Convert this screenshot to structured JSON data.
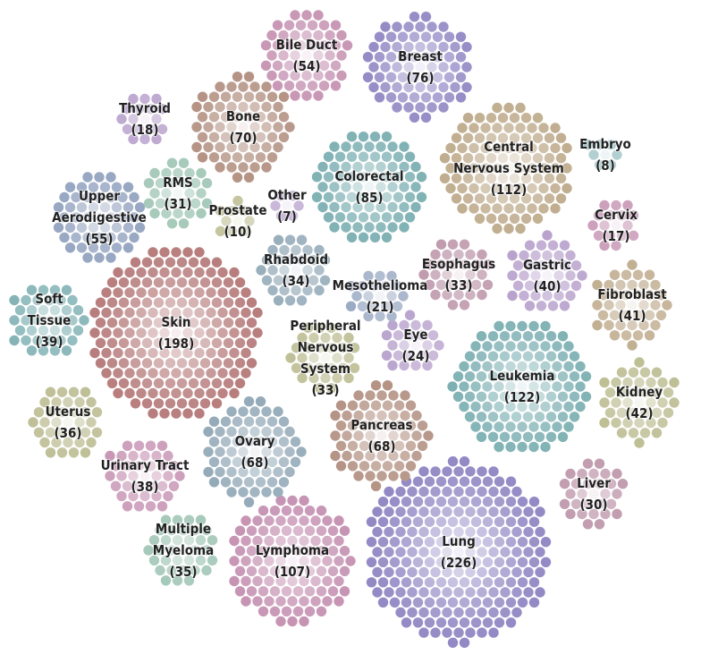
{
  "chart_data": {
    "type": "clustered-dot",
    "palette": {
      "rose": "#c48fb0",
      "purple": "#8f85c2",
      "brown": "#b08d7e",
      "tan": "#bda98a",
      "teal": "#79adb0",
      "blue": "#8fa0bd",
      "red": "#b67a7a",
      "olive": "#b8b98c",
      "lilac": "#b39bc9",
      "mauve": "#ba92a6",
      "sage": "#9cc3b3",
      "slate": "#8fa6b5"
    },
    "groups": [
      {
        "name": "Skin",
        "lines": [
          "Skin",
          "(198)"
        ],
        "count": 198,
        "color": "red"
      },
      {
        "name": "Lung",
        "lines": [
          "Lung",
          "(226)"
        ],
        "count": 226,
        "color": "purple"
      },
      {
        "name": "Leukemia",
        "lines": [
          "Leukemia",
          "(122)"
        ],
        "count": 122,
        "color": "teal"
      },
      {
        "name": "Central Nervous System",
        "lines": [
          "Central",
          "Nervous System",
          "(112)"
        ],
        "count": 112,
        "color": "tan"
      },
      {
        "name": "Lymphoma",
        "lines": [
          "Lymphoma",
          "(107)"
        ],
        "count": 107,
        "color": "rose"
      },
      {
        "name": "Colorectal",
        "lines": [
          "Colorectal",
          "(85)"
        ],
        "count": 85,
        "color": "teal"
      },
      {
        "name": "Breast",
        "lines": [
          "Breast",
          "(76)"
        ],
        "count": 76,
        "color": "purple"
      },
      {
        "name": "Bone",
        "lines": [
          "Bone",
          "(70)"
        ],
        "count": 70,
        "color": "brown"
      },
      {
        "name": "Pancreas",
        "lines": [
          "Pancreas",
          "(68)"
        ],
        "count": 68,
        "color": "brown"
      },
      {
        "name": "Ovary",
        "lines": [
          "Ovary",
          "(68)"
        ],
        "count": 68,
        "color": "slate"
      },
      {
        "name": "Upper Aerodigestive",
        "lines": [
          "Upper",
          "Aerodigestive",
          "(55)"
        ],
        "count": 55,
        "color": "blue"
      },
      {
        "name": "Bile Duct",
        "lines": [
          "Bile Duct",
          "(54)"
        ],
        "count": 54,
        "color": "rose"
      },
      {
        "name": "Kidney",
        "lines": [
          "Kidney",
          "(42)"
        ],
        "count": 42,
        "color": "olive"
      },
      {
        "name": "Fibroblast",
        "lines": [
          "Fibroblast",
          "(41)"
        ],
        "count": 41,
        "color": "tan"
      },
      {
        "name": "Gastric",
        "lines": [
          "Gastric",
          "(40)"
        ],
        "count": 40,
        "color": "lilac"
      },
      {
        "name": "Soft Tissue",
        "lines": [
          "Soft",
          "Tissue",
          "(39)"
        ],
        "count": 39,
        "color": "teal"
      },
      {
        "name": "Urinary Tract",
        "lines": [
          "Urinary Tract",
          "(38)"
        ],
        "count": 38,
        "color": "rose"
      },
      {
        "name": "Uterus",
        "lines": [
          "Uterus",
          "(36)"
        ],
        "count": 36,
        "color": "olive"
      },
      {
        "name": "Multiple Myeloma",
        "lines": [
          "Multiple",
          "Myeloma",
          "(35)"
        ],
        "count": 35,
        "color": "sage"
      },
      {
        "name": "Rhabdoid",
        "lines": [
          "Rhabdoid",
          "(34)"
        ],
        "count": 34,
        "color": "slate"
      },
      {
        "name": "Esophagus",
        "lines": [
          "Esophagus",
          "(33)"
        ],
        "count": 33,
        "color": "mauve"
      },
      {
        "name": "Peripheral Nervous System",
        "lines": [
          "Peripheral",
          "Nervous",
          "System",
          "(33)"
        ],
        "count": 33,
        "color": "olive"
      },
      {
        "name": "RMS",
        "lines": [
          "RMS",
          "(31)"
        ],
        "count": 31,
        "color": "sage"
      },
      {
        "name": "Liver",
        "lines": [
          "Liver",
          "(30)"
        ],
        "count": 30,
        "color": "mauve"
      },
      {
        "name": "Eye",
        "lines": [
          "Eye",
          "(24)"
        ],
        "count": 24,
        "color": "lilac"
      },
      {
        "name": "Mesothelioma",
        "lines": [
          "Mesothelioma",
          "(21)"
        ],
        "count": 21,
        "color": "blue"
      },
      {
        "name": "Thyroid",
        "lines": [
          "Thyroid",
          "(18)"
        ],
        "count": 18,
        "color": "lilac"
      },
      {
        "name": "Cervix",
        "lines": [
          "Cervix",
          "(17)"
        ],
        "count": 17,
        "color": "rose"
      },
      {
        "name": "Prostate",
        "lines": [
          "Prostate",
          "(10)"
        ],
        "count": 10,
        "color": "olive"
      },
      {
        "name": "Embryo",
        "lines": [
          "Embryo",
          "(8)"
        ],
        "count": 8,
        "color": "teal"
      },
      {
        "name": "Other",
        "lines": [
          "Other",
          "(7)"
        ],
        "count": 7,
        "color": "lilac"
      }
    ]
  }
}
